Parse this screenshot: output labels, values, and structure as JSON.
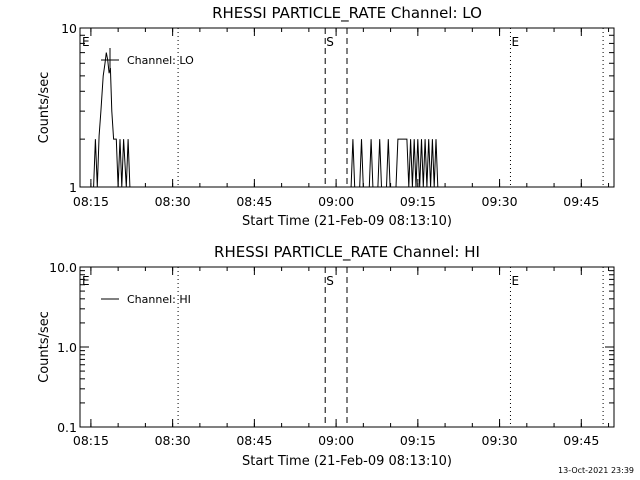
{
  "footer": {
    "timestamp": "13-Oct-2021 23:39"
  },
  "chart_data": [
    {
      "type": "line",
      "title": "RHESSI PARTICLE_RATE Channel: LO",
      "xlabel": "Start Time (21-Feb-09 08:13:10)",
      "ylabel": "Counts/sec",
      "y_scale": "log",
      "ylim": [
        1,
        10
      ],
      "y_ticks": [
        "1",
        "10"
      ],
      "x_range": [
        "08:13",
        "09:51"
      ],
      "x_ticks": [
        "08:15",
        "08:30",
        "08:45",
        "09:00",
        "09:15",
        "09:30",
        "09:45"
      ],
      "legend": {
        "position": "top-left",
        "entries": [
          "Channel: LO"
        ]
      },
      "markers": [
        {
          "label": "E",
          "time": "08:13",
          "style": "none"
        },
        {
          "label": "S",
          "time": "08:58",
          "style": "dashed"
        },
        {
          "label": "",
          "time": "09:02",
          "style": "dashed"
        },
        {
          "label": "E",
          "time": "09:32",
          "style": "dotted"
        },
        {
          "label": "",
          "time": "08:31",
          "style": "dotted"
        },
        {
          "label": "",
          "time": "09:49",
          "style": "dotted"
        }
      ],
      "series": [
        {
          "name": "Channel: LO",
          "points": [
            [
              "08:15:30",
              1
            ],
            [
              "08:15:50",
              2
            ],
            [
              "08:16:10",
              1
            ],
            [
              "08:16:30",
              2.1
            ],
            [
              "08:16:50",
              3
            ],
            [
              "08:17:15",
              5
            ],
            [
              "08:17:35",
              6
            ],
            [
              "08:17:50",
              7
            ],
            [
              "08:18:05",
              6.3
            ],
            [
              "08:18:20",
              5.2
            ],
            [
              "08:18:35",
              5.6
            ],
            [
              "08:18:50",
              3
            ],
            [
              "08:19:10",
              2
            ],
            [
              "08:19:40",
              2
            ],
            [
              "08:20:00",
              1
            ],
            [
              "08:20:20",
              2
            ],
            [
              "08:20:40",
              1
            ],
            [
              "08:21:00",
              2
            ],
            [
              "08:21:30",
              1
            ],
            [
              "08:21:50",
              2
            ],
            [
              "08:22:10",
              1
            ],
            [
              "09:02:45",
              1
            ],
            [
              "09:03:05",
              2
            ],
            [
              "09:03:25",
              1
            ],
            [
              "09:04:20",
              1
            ],
            [
              "09:04:40",
              2
            ],
            [
              "09:05:00",
              1
            ],
            [
              "09:06:05",
              1
            ],
            [
              "09:06:25",
              2
            ],
            [
              "09:06:45",
              1
            ],
            [
              "09:07:40",
              1
            ],
            [
              "09:08:00",
              2
            ],
            [
              "09:08:20",
              1
            ],
            [
              "09:09:15",
              1
            ],
            [
              "09:09:35",
              2
            ],
            [
              "09:09:55",
              1
            ],
            [
              "09:11:00",
              1
            ],
            [
              "09:11:20",
              2
            ],
            [
              "09:13:00",
              2
            ],
            [
              "09:13:20",
              1
            ],
            [
              "09:13:40",
              2
            ],
            [
              "09:14:00",
              1
            ],
            [
              "09:14:20",
              2
            ],
            [
              "09:14:40",
              1
            ],
            [
              "09:15:00",
              2
            ],
            [
              "09:15:20",
              1
            ],
            [
              "09:15:40",
              2
            ],
            [
              "09:16:00",
              1
            ],
            [
              "09:16:20",
              2
            ],
            [
              "09:16:40",
              1
            ],
            [
              "09:17:00",
              2
            ],
            [
              "09:17:20",
              1
            ],
            [
              "09:17:40",
              2
            ],
            [
              "09:18:00",
              1
            ],
            [
              "09:18:20",
              2
            ],
            [
              "09:18:40",
              1
            ]
          ]
        }
      ]
    },
    {
      "type": "line",
      "title": "RHESSI PARTICLE_RATE Channel: HI",
      "xlabel": "Start Time (21-Feb-09 08:13:10)",
      "ylabel": "Counts/sec",
      "y_scale": "log",
      "ylim": [
        0.1,
        10
      ],
      "y_ticks": [
        "0.1",
        "1.0",
        "10.0"
      ],
      "x_range": [
        "08:13",
        "09:51"
      ],
      "x_ticks": [
        "08:15",
        "08:30",
        "08:45",
        "09:00",
        "09:15",
        "09:30",
        "09:45"
      ],
      "legend": {
        "position": "top-left",
        "entries": [
          "Channel: HI"
        ]
      },
      "markers": [
        {
          "label": "E",
          "time": "08:13",
          "style": "none"
        },
        {
          "label": "S",
          "time": "08:58",
          "style": "dashed"
        },
        {
          "label": "",
          "time": "09:02",
          "style": "dashed"
        },
        {
          "label": "E",
          "time": "09:32",
          "style": "dotted"
        },
        {
          "label": "",
          "time": "08:31",
          "style": "dotted"
        },
        {
          "label": "",
          "time": "09:49",
          "style": "dotted"
        }
      ],
      "series": [
        {
          "name": "Channel: HI",
          "points": []
        }
      ]
    }
  ]
}
